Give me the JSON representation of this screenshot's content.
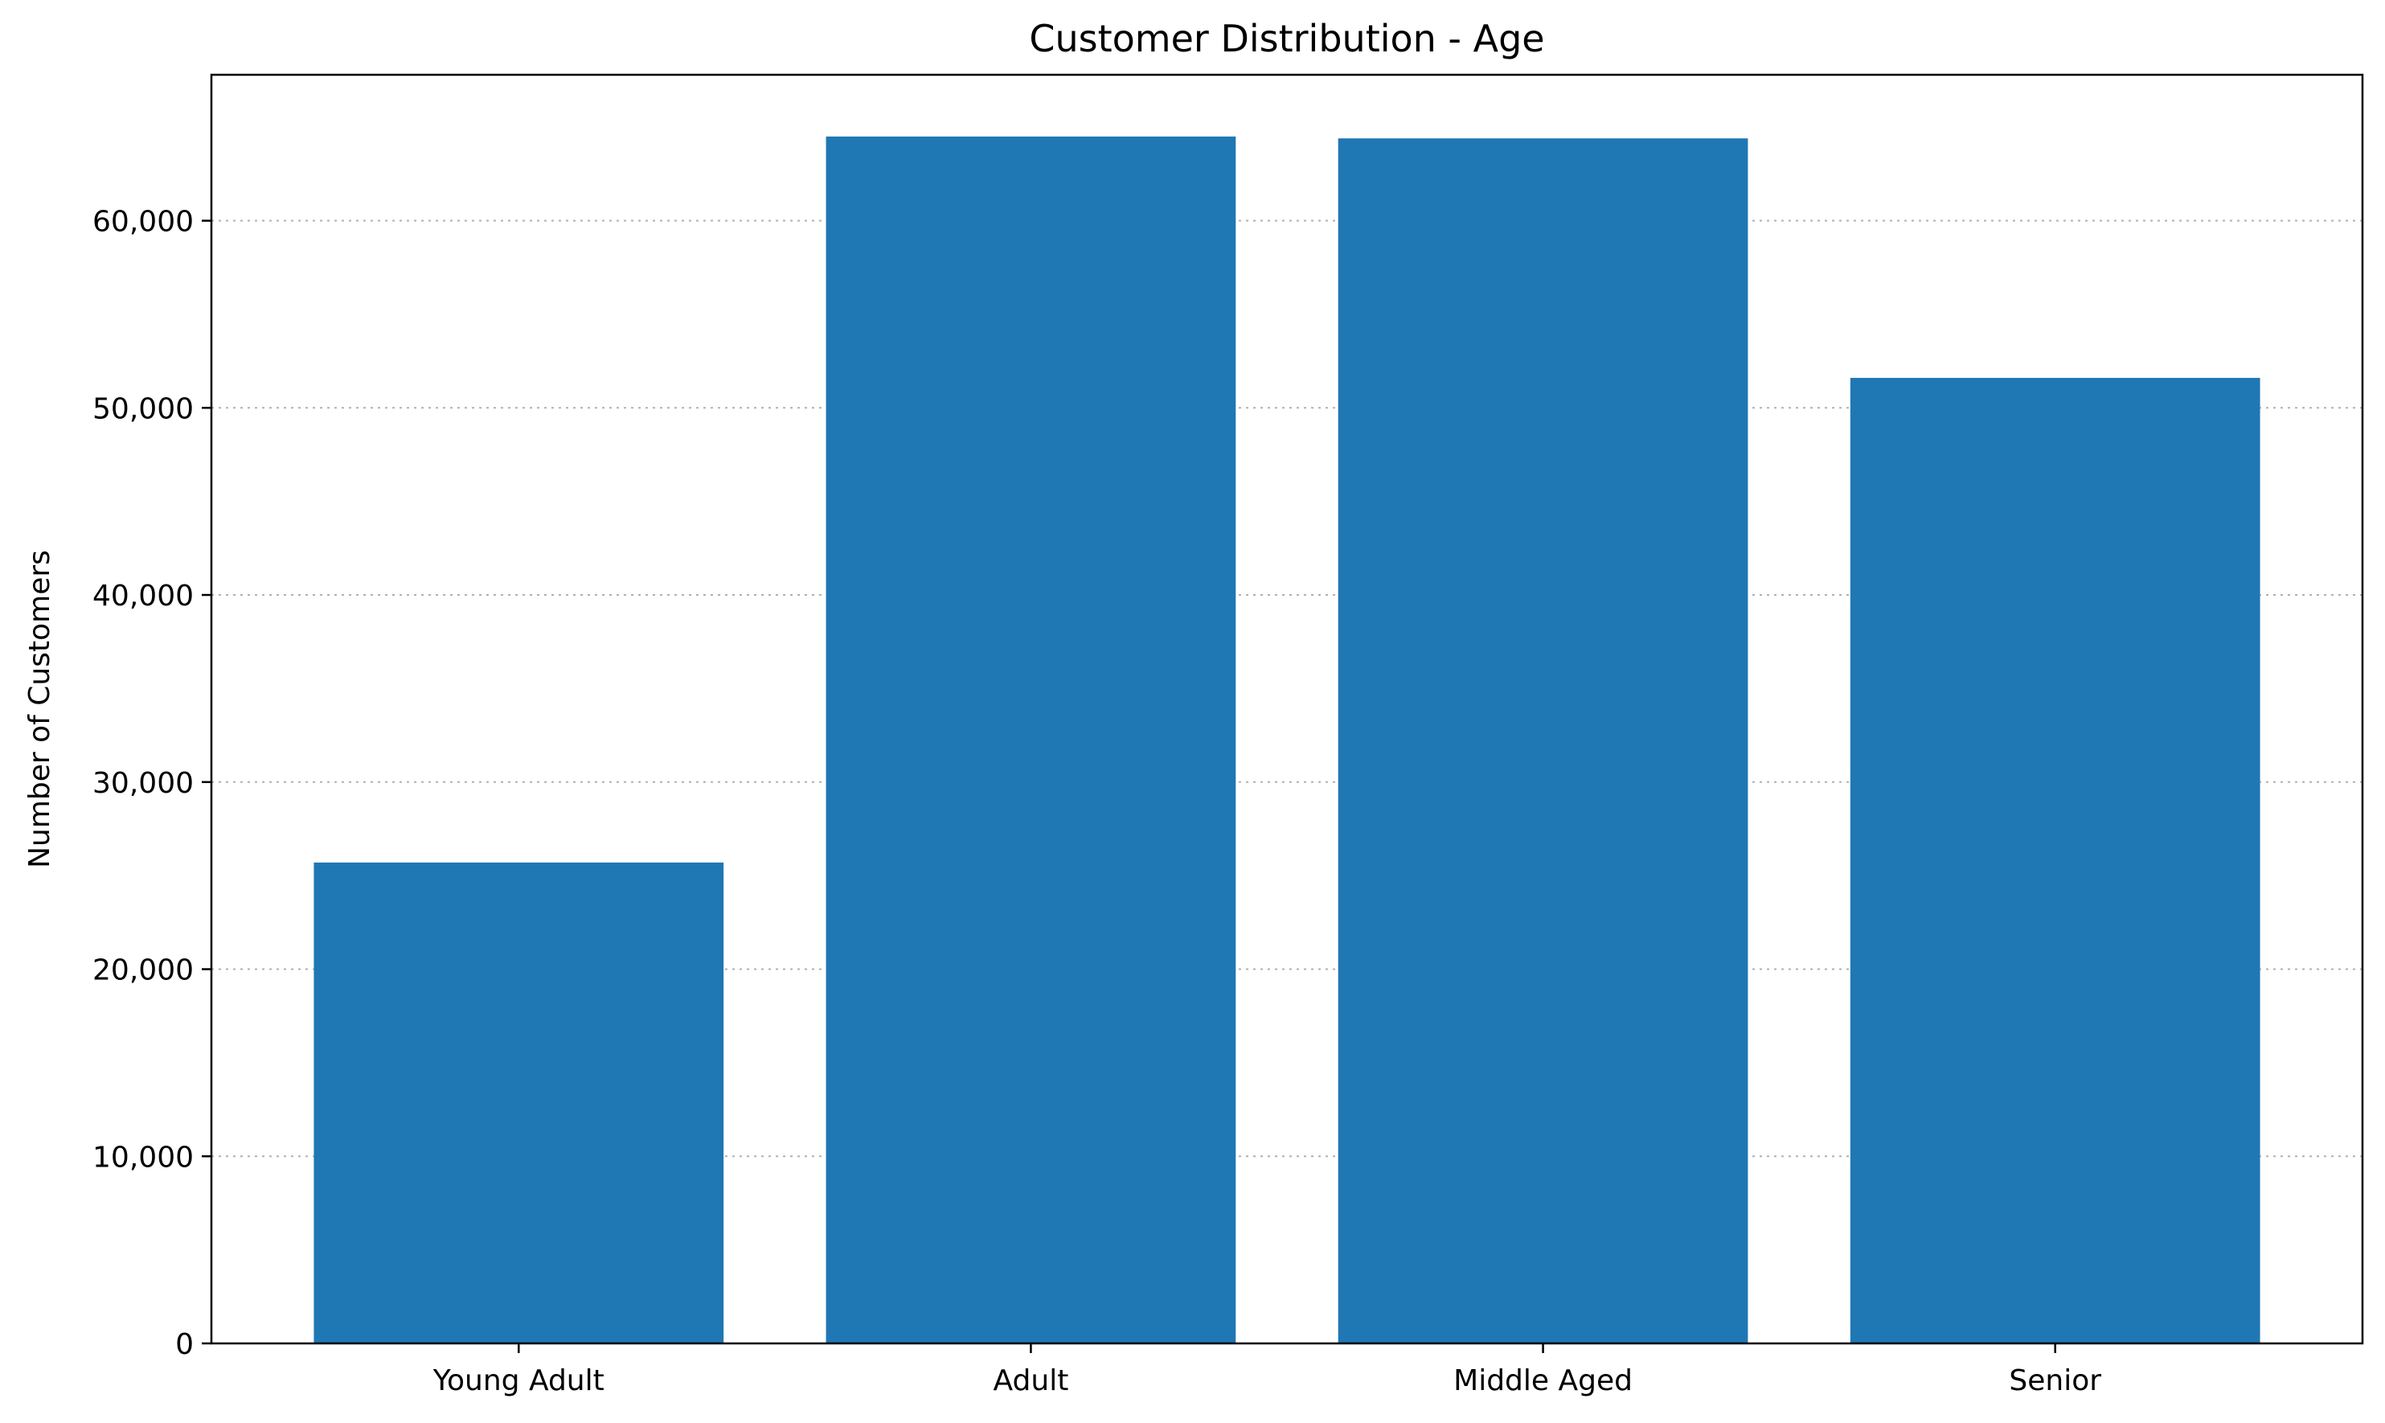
{
  "chart_data": {
    "type": "bar",
    "title": "Customer Distribution - Age",
    "xlabel": "",
    "ylabel": "Number of Customers",
    "categories": [
      "Young Adult",
      "Adult",
      "Middle Aged",
      "Senior"
    ],
    "values": [
      25700,
      64500,
      64400,
      51600
    ],
    "ylim": [
      0,
      67800
    ],
    "yticks": [
      0,
      10000,
      20000,
      30000,
      40000,
      50000,
      60000
    ],
    "ytick_labels": [
      "0",
      "10,000",
      "20,000",
      "30,000",
      "40,000",
      "50,000",
      "60,000"
    ],
    "grid": "y-axis dotted",
    "bar_color": "#1f77b4",
    "grid_color": "#b0b0b0"
  }
}
